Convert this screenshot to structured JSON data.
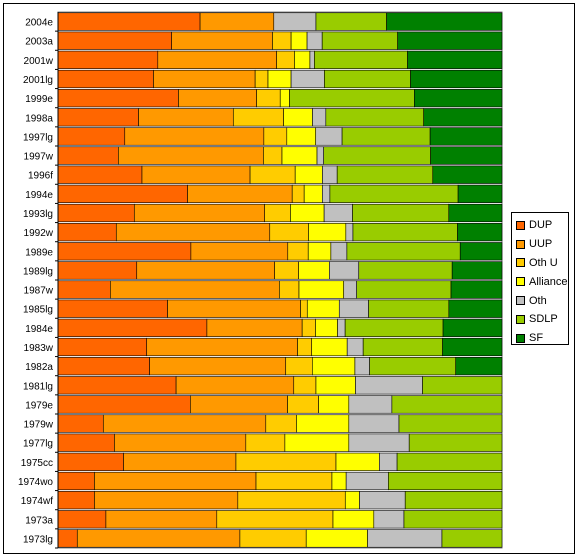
{
  "chart_data": {
    "type": "bar",
    "orientation": "horizontal",
    "stacked": "100%",
    "title": "",
    "xlabel": "",
    "ylabel": "",
    "xlim": [
      0,
      100
    ],
    "grid": false,
    "legend_position": "right",
    "categories": [
      "2004e",
      "2003a",
      "2001w",
      "2001lg",
      "1999e",
      "1998a",
      "1997lg",
      "1997w",
      "1996f",
      "1994e",
      "1993lg",
      "1992w",
      "1989e",
      "1989lg",
      "1987w",
      "1985lg",
      "1984e",
      "1983w",
      "1982a",
      "1981lg",
      "1979e",
      "1979w",
      "1977lg",
      "1975cc",
      "1974wo",
      "1974wf",
      "1973a",
      "1973lg"
    ],
    "series": [
      {
        "name": "DUP",
        "color": "#ff6600",
        "values": [
          32.0,
          25.6,
          22.5,
          21.5,
          27.1,
          18.1,
          15.7,
          13.6,
          18.8,
          29.2,
          17.2,
          13.1,
          29.9,
          17.7,
          11.7,
          24.3,
          33.6,
          20.0,
          20.0,
          26.6,
          29.8,
          10.2,
          12.7,
          14.8,
          8.2,
          8.2,
          10.8,
          4.3
        ]
      },
      {
        "name": "UUP",
        "color": "#ff9900",
        "values": [
          16.6,
          22.7,
          26.8,
          22.9,
          17.6,
          21.3,
          32.7,
          32.7,
          24.2,
          23.6,
          29.4,
          34.5,
          21.8,
          31.0,
          37.8,
          29.5,
          21.5,
          34.0,
          29.7,
          26.5,
          21.9,
          36.6,
          29.6,
          25.4,
          36.4,
          32.3,
          25.0,
          36.3
        ]
      },
      {
        "name": "Oth U",
        "color": "#ffcc00",
        "values": [
          0.0,
          4.2,
          4.0,
          2.9,
          5.3,
          11.3,
          5.4,
          4.2,
          10.1,
          2.7,
          5.8,
          8.7,
          4.6,
          5.4,
          4.4,
          1.5,
          3.0,
          3.2,
          5.8,
          5.0,
          7.0,
          6.9,
          8.8,
          22.6,
          17.1,
          24.2,
          26.2,
          14.8
        ]
      },
      {
        "name": "Alliance",
        "color": "#ffff00",
        "values": [
          0.0,
          3.6,
          3.5,
          5.2,
          2.1,
          6.5,
          6.8,
          7.9,
          6.1,
          4.1,
          7.6,
          8.4,
          5.1,
          6.9,
          10.0,
          7.1,
          5.0,
          8.0,
          9.3,
          8.9,
          6.8,
          11.8,
          14.4,
          9.8,
          3.2,
          3.2,
          9.2,
          13.7
        ]
      },
      {
        "name": "Oth",
        "color": "#c0c0c0",
        "values": [
          9.5,
          3.4,
          1.0,
          7.5,
          0.0,
          3.0,
          6.2,
          1.5,
          3.3,
          1.7,
          6.4,
          1.6,
          3.6,
          6.6,
          2.9,
          6.5,
          1.7,
          3.6,
          3.2,
          15.1,
          9.7,
          11.3,
          13.6,
          4.0,
          9.5,
          10.3,
          6.8,
          16.6
        ]
      },
      {
        "name": "SDLP",
        "color": "#99cc00",
        "values": [
          15.9,
          17.0,
          21.0,
          19.4,
          28.1,
          22.0,
          20.7,
          24.1,
          21.4,
          28.9,
          21.7,
          23.5,
          25.5,
          21.0,
          21.1,
          17.8,
          22.1,
          17.9,
          18.8,
          17.9,
          24.8,
          23.2,
          20.9,
          23.7,
          25.6,
          21.8,
          22.1,
          13.4
        ]
      },
      {
        "name": "SF",
        "color": "#008000",
        "values": [
          26.0,
          23.5,
          21.3,
          20.6,
          19.7,
          17.6,
          16.9,
          16.1,
          15.5,
          9.9,
          12.0,
          10.0,
          9.4,
          11.2,
          11.4,
          11.8,
          13.3,
          13.4,
          10.1,
          0.0,
          0.0,
          0.0,
          0.0,
          0.0,
          0.0,
          0.0,
          0.0,
          0.0
        ]
      }
    ]
  }
}
